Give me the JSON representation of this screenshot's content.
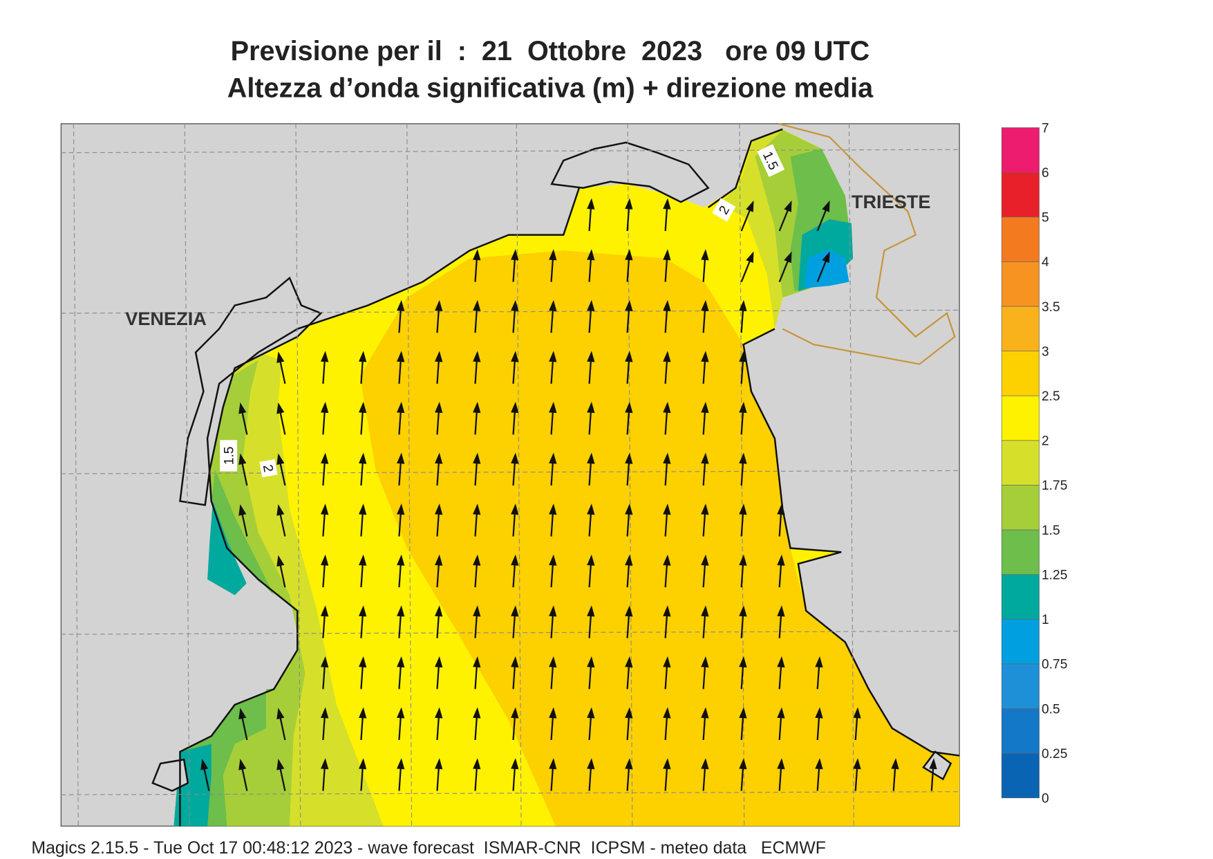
{
  "title": {
    "line1": "Previsione per il  :  21  Ottobre  2023   ore 09 UTC",
    "line2": "Altezza d’onda significativa (m) + direzione media"
  },
  "places": [
    "VENEZIA",
    "TRIESTE"
  ],
  "contour_labels": [
    "1.5",
    "2",
    "1.5",
    "2"
  ],
  "legend": {
    "levels": [
      0,
      0.25,
      0.5,
      0.75,
      1,
      1.25,
      1.5,
      1.75,
      2,
      2.5,
      3,
      3.5,
      4,
      5,
      6,
      7
    ],
    "colors": [
      "#0a64b4",
      "#1478c8",
      "#1e90d8",
      "#00a0e0",
      "#00a99d",
      "#6dbe4a",
      "#a6ce39",
      "#d6e02a",
      "#fff200",
      "#fdd000",
      "#f9b21c",
      "#f79321",
      "#f47a20",
      "#e8202a",
      "#ee1c6e"
    ]
  },
  "footer": "Magics 2.15.5 - Tue Oct 17 00:48:12 2023 - wave forecast  ISMAR-CNR  ICPSM - meteo data   ECMWF"
}
